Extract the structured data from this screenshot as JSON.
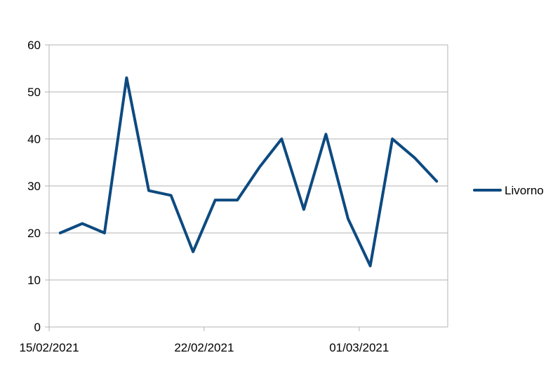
{
  "chart_data": {
    "type": "line",
    "title": "",
    "xlabel": "",
    "ylabel": "",
    "ylim": [
      0,
      60
    ],
    "yticks": [
      0,
      10,
      20,
      30,
      40,
      50,
      60
    ],
    "x_tick_labels": [
      "15/02/2021",
      "22/02/2021",
      "01/03/2021"
    ],
    "x_tick_dates": [
      "2021-02-15",
      "2021-02-22",
      "2021-03-01"
    ],
    "grid": true,
    "legend_position": "right",
    "x": [
      "2021-02-15",
      "2021-02-16",
      "2021-02-17",
      "2021-02-18",
      "2021-02-19",
      "2021-02-20",
      "2021-02-21",
      "2021-02-22",
      "2021-02-23",
      "2021-02-24",
      "2021-02-25",
      "2021-02-26",
      "2021-02-27",
      "2021-02-28",
      "2021-03-01",
      "2021-03-02",
      "2021-03-03",
      "2021-03-04"
    ],
    "series": [
      {
        "name": "Livorno",
        "color": "#0d4a80",
        "values": [
          20,
          22,
          20,
          53,
          29,
          28,
          16,
          27,
          27,
          34,
          40,
          25,
          41,
          23,
          13,
          40,
          36,
          31
        ]
      }
    ]
  }
}
